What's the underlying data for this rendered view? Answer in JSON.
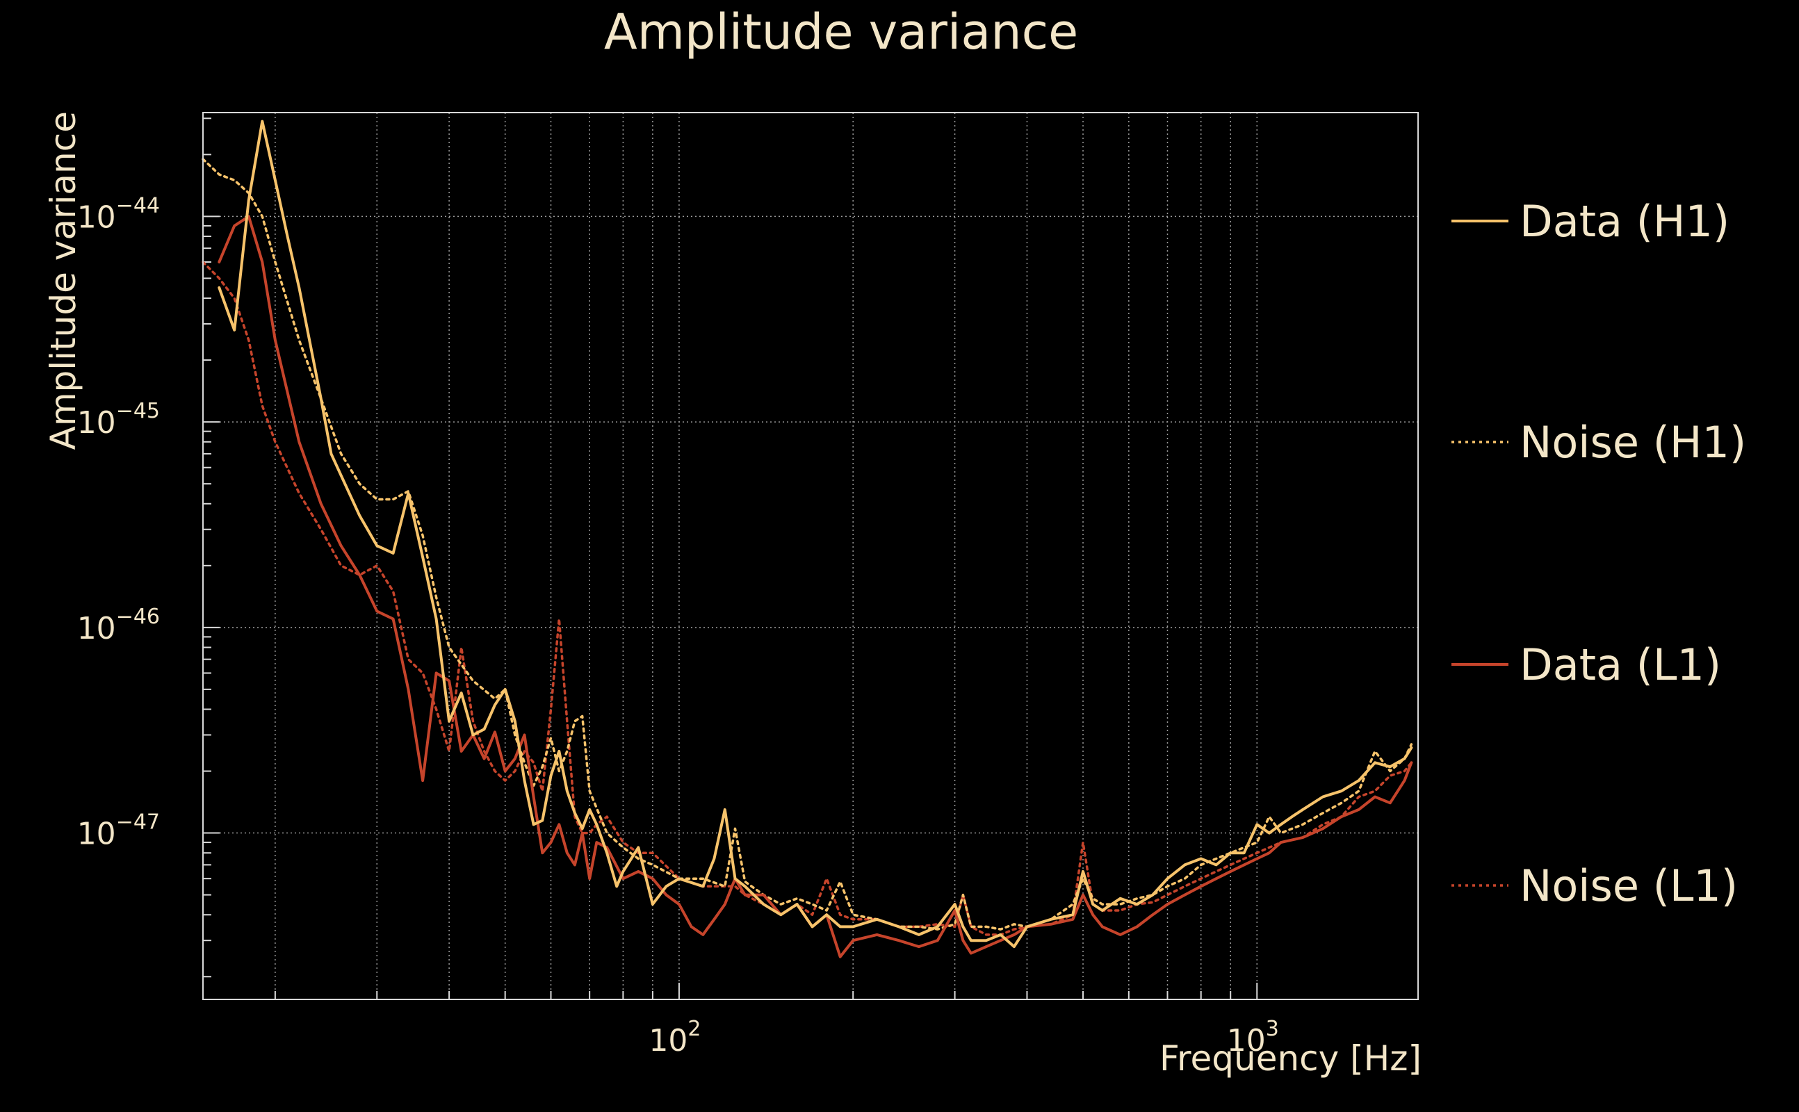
{
  "chart_data": {
    "type": "line",
    "title": "Amplitude variance",
    "xlabel": "Frequency [Hz]",
    "ylabel": "Amplitude variance",
    "xscale": "log",
    "yscale": "log",
    "xlim": [
      15,
      1900
    ],
    "ylim": [
      1.55e-48,
      3.2e-44
    ],
    "grid": true,
    "legend_position": "right",
    "x_ticks": [
      {
        "value": 100,
        "base": "10",
        "exp": "2"
      },
      {
        "value": 1000,
        "base": "10",
        "exp": "3"
      }
    ],
    "y_ticks": [
      {
        "value": 1e-44,
        "base": "10",
        "exp": "−44"
      },
      {
        "value": 1e-45,
        "base": "10",
        "exp": "−45"
      },
      {
        "value": 1e-46,
        "base": "10",
        "exp": "−46"
      },
      {
        "value": 1e-47,
        "base": "10",
        "exp": "−47"
      }
    ],
    "series": [
      {
        "name": "Data (H1)",
        "color": "#f7c36b",
        "style": "solid",
        "x": [
          16,
          17,
          18,
          19,
          20,
          21,
          22,
          24,
          25,
          26,
          28,
          30,
          32,
          34,
          36,
          38,
          40,
          42,
          44,
          46,
          48,
          50,
          52,
          54,
          56,
          58,
          60,
          62,
          64,
          66,
          68,
          70,
          72,
          75,
          78,
          80,
          85,
          90,
          95,
          100,
          110,
          115,
          120,
          125,
          130,
          140,
          150,
          160,
          170,
          180,
          190,
          200,
          220,
          240,
          260,
          280,
          300,
          310,
          320,
          340,
          360,
          380,
          400,
          440,
          480,
          500,
          520,
          540,
          580,
          620,
          660,
          700,
          750,
          800,
          850,
          900,
          950,
          1000,
          1050,
          1100,
          1150,
          1200,
          1300,
          1400,
          1500,
          1600,
          1700,
          1800,
          1850
        ],
        "y": [
          4.5e-45,
          2.8e-45,
          1.2e-44,
          2.9e-44,
          1.5e-44,
          8e-45,
          4.5e-45,
          1.3e-45,
          7e-46,
          5.5e-46,
          3.5e-46,
          2.5e-46,
          2.3e-46,
          4.5e-46,
          2.2e-46,
          1.1e-46,
          3.5e-47,
          4.8e-47,
          3e-47,
          3.2e-47,
          4.2e-47,
          5e-47,
          3.5e-47,
          1.8e-47,
          1.1e-47,
          1.15e-47,
          1.9e-47,
          2.5e-47,
          1.6e-47,
          1.25e-47,
          1.05e-47,
          1.3e-47,
          1.1e-47,
          8e-48,
          5.5e-48,
          6.5e-48,
          8.5e-48,
          4.5e-48,
          5.5e-48,
          6e-48,
          5.5e-48,
          7.5e-48,
          1.3e-47,
          6e-48,
          5.5e-48,
          4.5e-48,
          4e-48,
          4.5e-48,
          3.5e-48,
          4e-48,
          3.5e-48,
          3.5e-48,
          3.8e-48,
          3.5e-48,
          3.2e-48,
          3.5e-48,
          4.5e-48,
          3.5e-48,
          3e-48,
          3e-48,
          3.2e-48,
          2.8e-48,
          3.5e-48,
          3.8e-48,
          4e-48,
          6.5e-48,
          4.5e-48,
          4.2e-48,
          4.8e-48,
          4.5e-48,
          5e-48,
          6e-48,
          7e-48,
          7.5e-48,
          7e-48,
          8e-48,
          8e-48,
          1.1e-47,
          1e-47,
          1.1e-47,
          1.2e-47,
          1.3e-47,
          1.5e-47,
          1.6e-47,
          1.8e-47,
          2.2e-47,
          2.1e-47,
          2.3e-47,
          2.6e-47
        ]
      },
      {
        "name": "Noise (H1)",
        "color": "#f7c36b",
        "style": "dotted",
        "x": [
          15,
          16,
          17,
          18,
          19,
          20,
          22,
          24,
          26,
          28,
          30,
          32,
          34,
          36,
          38,
          40,
          44,
          48,
          50,
          52,
          54,
          56,
          58,
          60,
          62,
          64,
          66,
          68,
          70,
          75,
          80,
          85,
          90,
          100,
          110,
          120,
          125,
          130,
          140,
          150,
          160,
          170,
          180,
          190,
          200,
          220,
          240,
          260,
          280,
          300,
          310,
          320,
          340,
          360,
          380,
          400,
          440,
          480,
          500,
          520,
          540,
          580,
          620,
          660,
          700,
          750,
          800,
          850,
          900,
          950,
          1000,
          1050,
          1100,
          1200,
          1300,
          1400,
          1500,
          1600,
          1700,
          1800,
          1850
        ],
        "y": [
          1.9e-44,
          1.6e-44,
          1.5e-44,
          1.3e-44,
          1e-44,
          6e-45,
          2.5e-45,
          1.3e-45,
          7e-46,
          5e-46,
          4.2e-46,
          4.2e-46,
          4.6e-46,
          2.8e-46,
          1.4e-46,
          8e-47,
          5.5e-47,
          4.5e-47,
          5e-47,
          3e-47,
          2.2e-47,
          1.7e-47,
          2.1e-47,
          2.9e-47,
          2e-47,
          2.5e-47,
          3.5e-47,
          3.7e-47,
          1.6e-47,
          1e-47,
          8.5e-48,
          7.5e-48,
          7e-48,
          6e-48,
          6e-48,
          5.5e-48,
          1.05e-47,
          5.8e-48,
          5e-48,
          4.5e-48,
          4.8e-48,
          4.5e-48,
          4.2e-48,
          5.8e-48,
          4e-48,
          3.8e-48,
          3.5e-48,
          3.5e-48,
          3.4e-48,
          3.6e-48,
          5e-48,
          3.5e-48,
          3.5e-48,
          3.4e-48,
          3.6e-48,
          3.5e-48,
          3.8e-48,
          4.5e-48,
          6e-48,
          4.8e-48,
          4.5e-48,
          4.5e-48,
          4.8e-48,
          5e-48,
          5.5e-48,
          6e-48,
          7e-48,
          7.5e-48,
          8e-48,
          8.5e-48,
          9e-48,
          1.2e-47,
          1e-47,
          1.1e-47,
          1.25e-47,
          1.4e-47,
          1.6e-47,
          2.5e-47,
          2e-47,
          2.3e-47,
          2.7e-47
        ]
      },
      {
        "name": "Data (L1)",
        "color": "#c6442b",
        "style": "solid",
        "x": [
          16,
          17,
          18,
          19,
          20,
          22,
          24,
          26,
          28,
          30,
          32,
          34,
          36,
          38,
          40,
          42,
          44,
          46,
          48,
          50,
          52,
          54,
          56,
          58,
          60,
          62,
          64,
          66,
          68,
          70,
          72,
          75,
          80,
          85,
          90,
          95,
          100,
          105,
          110,
          115,
          120,
          125,
          130,
          140,
          150,
          160,
          170,
          180,
          190,
          200,
          220,
          240,
          260,
          280,
          300,
          310,
          320,
          340,
          360,
          380,
          400,
          440,
          480,
          500,
          520,
          540,
          580,
          620,
          660,
          700,
          750,
          800,
          850,
          900,
          950,
          1000,
          1050,
          1100,
          1200,
          1300,
          1400,
          1500,
          1600,
          1700,
          1800,
          1850
        ],
        "y": [
          6e-45,
          9e-45,
          1e-44,
          6e-45,
          2.5e-45,
          8e-46,
          4e-46,
          2.5e-46,
          1.8e-46,
          1.2e-46,
          1.1e-46,
          5e-47,
          1.8e-47,
          6e-47,
          5.5e-47,
          2.5e-47,
          3e-47,
          2.3e-47,
          3.1e-47,
          2e-47,
          2.3e-47,
          3e-47,
          1.5e-47,
          8e-48,
          9e-48,
          1.1e-47,
          8e-48,
          7e-48,
          1e-47,
          6e-48,
          9e-48,
          8.5e-48,
          6e-48,
          6.5e-48,
          6e-48,
          5e-48,
          4.5e-48,
          3.5e-48,
          3.2e-48,
          3.8e-48,
          4.5e-48,
          6e-48,
          5e-48,
          5e-48,
          4e-48,
          4.5e-48,
          3.5e-48,
          4e-48,
          2.5e-48,
          3e-48,
          3.2e-48,
          3e-48,
          2.8e-48,
          3e-48,
          4.2e-48,
          3e-48,
          2.6e-48,
          2.8e-48,
          3e-48,
          3.2e-48,
          3.5e-48,
          3.6e-48,
          3.8e-48,
          5e-48,
          4e-48,
          3.5e-48,
          3.2e-48,
          3.5e-48,
          4e-48,
          4.5e-48,
          5e-48,
          5.5e-48,
          6e-48,
          6.5e-48,
          7e-48,
          7.5e-48,
          8e-48,
          9e-48,
          9.5e-48,
          1.05e-47,
          1.2e-47,
          1.3e-47,
          1.5e-47,
          1.4e-47,
          1.8e-47,
          2.2e-47
        ]
      },
      {
        "name": "Noise (L1)",
        "color": "#c6442b",
        "style": "dotted",
        "x": [
          15,
          16,
          17,
          18,
          19,
          20,
          22,
          24,
          26,
          28,
          30,
          32,
          34,
          36,
          38,
          40,
          42,
          44,
          46,
          48,
          50,
          52,
          54,
          56,
          58,
          60,
          62,
          64,
          66,
          68,
          70,
          72,
          75,
          80,
          85,
          90,
          100,
          110,
          120,
          125,
          130,
          140,
          150,
          160,
          170,
          180,
          190,
          200,
          220,
          240,
          260,
          280,
          300,
          310,
          320,
          340,
          360,
          380,
          400,
          440,
          480,
          500,
          520,
          540,
          580,
          620,
          660,
          700,
          750,
          800,
          850,
          900,
          950,
          1000,
          1050,
          1100,
          1200,
          1300,
          1400,
          1500,
          1600,
          1700,
          1800,
          1850
        ],
        "y": [
          6e-45,
          5e-45,
          4e-45,
          2.5e-45,
          1.2e-45,
          8e-46,
          4.5e-46,
          3e-46,
          2e-46,
          1.8e-46,
          2e-46,
          1.5e-46,
          7e-47,
          6e-47,
          4e-47,
          2.5e-47,
          8e-47,
          3.5e-47,
          2.5e-47,
          2e-47,
          1.8e-47,
          2e-47,
          2.5e-47,
          2.2e-47,
          1.6e-47,
          4e-47,
          1.1e-46,
          3.5e-47,
          1.2e-47,
          1e-47,
          1e-47,
          1.1e-47,
          1.2e-47,
          9e-48,
          8e-48,
          8e-48,
          6e-48,
          5.5e-48,
          5.5e-48,
          5.5e-48,
          5e-48,
          4.5e-48,
          4e-48,
          4.5e-48,
          4e-48,
          6e-48,
          4e-48,
          3.8e-48,
          3.8e-48,
          3.5e-48,
          3.5e-48,
          3.6e-48,
          3.5e-48,
          5e-48,
          3.5e-48,
          3.2e-48,
          3.2e-48,
          3.4e-48,
          3.5e-48,
          3.6e-48,
          4e-48,
          9e-48,
          4.5e-48,
          4.2e-48,
          4.2e-48,
          4.5e-48,
          4.6e-48,
          5e-48,
          5.5e-48,
          6e-48,
          6.5e-48,
          7e-48,
          7.5e-48,
          8e-48,
          8.5e-48,
          9e-48,
          9.5e-48,
          1.1e-47,
          1.2e-47,
          1.5e-47,
          1.6e-47,
          1.9e-47,
          2e-47,
          2.2e-47
        ]
      }
    ]
  }
}
